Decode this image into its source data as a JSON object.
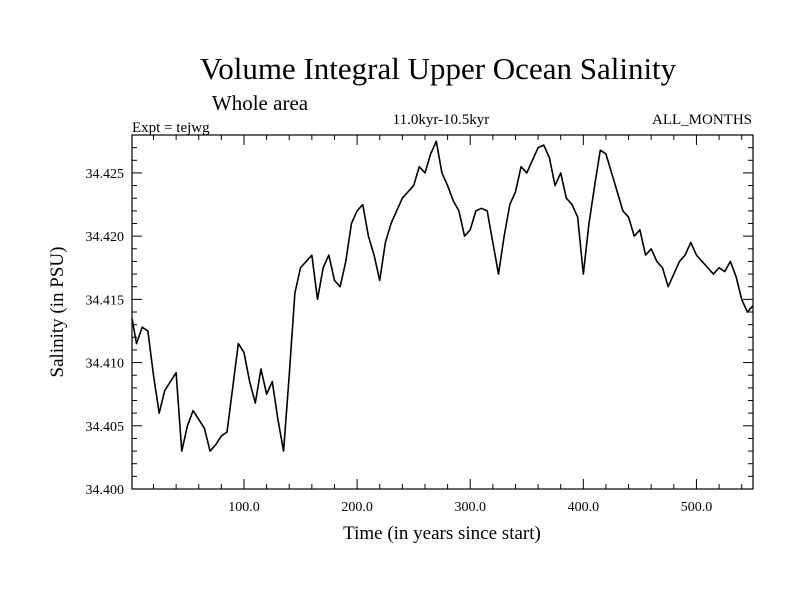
{
  "chart_data": {
    "type": "line",
    "title": "Volume Integral Upper Ocean Salinity",
    "subtitle": "Whole area",
    "experiment": "Expt = tejwg",
    "period": "11.0kyr-10.5kyr",
    "months": "ALL_MONTHS",
    "xlabel": "Time (in years since start)",
    "ylabel": "Salinity (in PSU)",
    "xlim": [
      1,
      550
    ],
    "ylim": [
      34.4,
      34.428
    ],
    "x_ticks": [
      100,
      200,
      300,
      400,
      500
    ],
    "x_tick_labels": [
      "100.0",
      "200.0",
      "300.0",
      "400.0",
      "500.0"
    ],
    "y_ticks": [
      34.4,
      34.405,
      34.41,
      34.415,
      34.42,
      34.425
    ],
    "y_tick_labels": [
      "34.400",
      "34.405",
      "34.410",
      "34.415",
      "34.420",
      "34.425"
    ],
    "series": [
      {
        "name": "Volume integral upper ocean salinity",
        "x": [
          1,
          5,
          10,
          15,
          20,
          25,
          30,
          35,
          40,
          45,
          50,
          55,
          60,
          65,
          70,
          75,
          80,
          85,
          90,
          95,
          100,
          105,
          110,
          115,
          120,
          125,
          130,
          135,
          140,
          145,
          150,
          155,
          160,
          165,
          170,
          175,
          180,
          185,
          190,
          195,
          200,
          205,
          210,
          215,
          220,
          225,
          230,
          235,
          240,
          245,
          250,
          255,
          260,
          265,
          270,
          275,
          280,
          285,
          290,
          295,
          300,
          305,
          310,
          315,
          320,
          325,
          330,
          335,
          340,
          345,
          350,
          355,
          360,
          365,
          370,
          375,
          380,
          385,
          390,
          395,
          400,
          405,
          410,
          415,
          420,
          425,
          430,
          435,
          440,
          445,
          450,
          455,
          460,
          465,
          470,
          475,
          480,
          485,
          490,
          495,
          500,
          505,
          510,
          515,
          520,
          525,
          530,
          535,
          540,
          545,
          550
        ],
        "values": [
          34.4135,
          34.4115,
          34.4128,
          34.4125,
          34.409,
          34.406,
          34.4078,
          34.4085,
          34.4092,
          34.403,
          34.405,
          34.4062,
          34.4055,
          34.4048,
          34.403,
          34.4035,
          34.4042,
          34.4045,
          34.408,
          34.4115,
          34.4108,
          34.4085,
          34.4068,
          34.4095,
          34.4075,
          34.4085,
          34.4055,
          34.403,
          34.409,
          34.4155,
          34.4175,
          34.418,
          34.4185,
          34.415,
          34.4175,
          34.4185,
          34.4165,
          34.416,
          34.418,
          34.421,
          34.422,
          34.4225,
          34.42,
          34.4185,
          34.4165,
          34.4195,
          34.421,
          34.422,
          34.423,
          34.4235,
          34.424,
          34.4255,
          34.425,
          34.4265,
          34.4275,
          34.425,
          34.424,
          34.4228,
          34.422,
          34.42,
          34.4205,
          34.422,
          34.4222,
          34.422,
          34.4195,
          34.417,
          34.42,
          34.4225,
          34.4235,
          34.4255,
          34.425,
          34.426,
          34.427,
          34.4272,
          34.4262,
          34.424,
          34.425,
          34.423,
          34.4225,
          34.4215,
          34.417,
          34.421,
          34.424,
          34.4268,
          34.4265,
          34.425,
          34.4235,
          34.422,
          34.4215,
          34.42,
          34.4205,
          34.4185,
          34.419,
          34.418,
          34.4175,
          34.416,
          34.417,
          34.418,
          34.4185,
          34.4195,
          34.4185,
          34.418,
          34.4175,
          34.417,
          34.4175,
          34.4172,
          34.418,
          34.4168,
          34.415,
          34.414,
          34.4145
        ]
      }
    ]
  }
}
